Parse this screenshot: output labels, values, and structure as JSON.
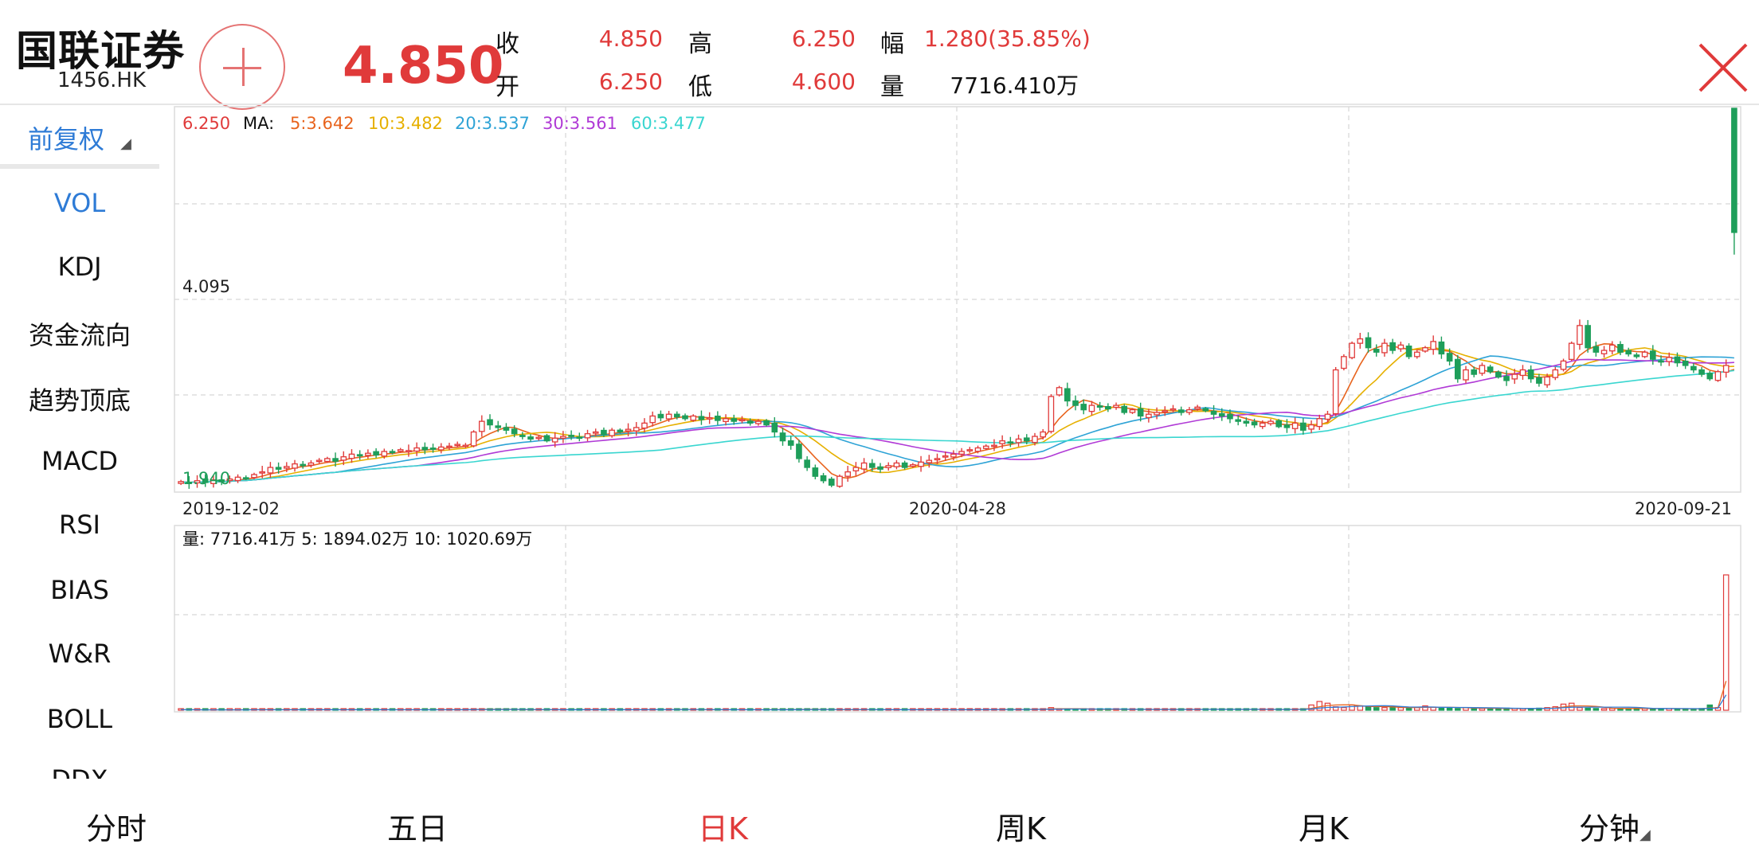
{
  "header": {
    "name": "国联证券",
    "code": "1456.HK",
    "last_price": "4.850",
    "quote": {
      "close_label": "收",
      "close": "4.850",
      "high_label": "高",
      "high": "6.250",
      "change_label": "幅",
      "change": "1.280(35.85%)",
      "open_label": "开",
      "open": "6.250",
      "low_label": "低",
      "low": "4.600",
      "volume_label": "量",
      "volume": "7716.410万"
    },
    "icons": {
      "add": "plus-circle-icon",
      "close": "close-x-icon"
    }
  },
  "sidebar": {
    "adjust_mode": "前复权",
    "items": [
      {
        "label": "VOL",
        "active": true
      },
      {
        "label": "KDJ"
      },
      {
        "label": "资金流向"
      },
      {
        "label": "趋势顶底"
      },
      {
        "label": "MACD"
      },
      {
        "label": "RSI"
      },
      {
        "label": "BIAS"
      },
      {
        "label": "W&R"
      },
      {
        "label": "BOLL"
      },
      {
        "label": "DDX"
      }
    ]
  },
  "price_panel": {
    "high_label": "6.250",
    "ma_prefix": "MA:",
    "ma": [
      {
        "text": "5:3.642",
        "color": "#e8641e"
      },
      {
        "text": "10:3.482",
        "color": "#e6b000"
      },
      {
        "text": "20:3.537",
        "color": "#2ea3d6"
      },
      {
        "text": "30:3.561",
        "color": "#b03ad6"
      },
      {
        "text": "60:3.477",
        "color": "#3ad6d0"
      }
    ],
    "mid_label": "4.095",
    "low_label": "1.940"
  },
  "x_axis": [
    "2019-12-02",
    "2020-04-28",
    "2020-09-21"
  ],
  "volume_panel": {
    "text": "量: 7716.41万  5: 1894.02万  10: 1020.69万"
  },
  "chart_data": {
    "type": "candlestick",
    "y_range": [
      1.94,
      6.25
    ],
    "start_date": "2019-12-02",
    "end_date": "2020-09-21",
    "last_candle": {
      "open": 6.25,
      "high": 6.25,
      "low": 4.6,
      "close": 4.85,
      "volume_wan": 7716.41
    },
    "closes": [
      2.04,
      2.02,
      2.05,
      2.03,
      2.06,
      2.04,
      2.07,
      2.09,
      2.08,
      2.12,
      2.15,
      2.2,
      2.18,
      2.21,
      2.24,
      2.22,
      2.25,
      2.28,
      2.3,
      2.27,
      2.32,
      2.35,
      2.33,
      2.36,
      2.34,
      2.38,
      2.37,
      2.4,
      2.39,
      2.42,
      2.4,
      2.41,
      2.43,
      2.44,
      2.46,
      2.45,
      2.6,
      2.72,
      2.68,
      2.65,
      2.62,
      2.58,
      2.55,
      2.52,
      2.54,
      2.5,
      2.53,
      2.55,
      2.56,
      2.54,
      2.58,
      2.6,
      2.57,
      2.62,
      2.6,
      2.63,
      2.65,
      2.7,
      2.78,
      2.76,
      2.8,
      2.77,
      2.75,
      2.78,
      2.74,
      2.76,
      2.73,
      2.75,
      2.72,
      2.74,
      2.7,
      2.72,
      2.68,
      2.6,
      2.5,
      2.45,
      2.3,
      2.2,
      2.1,
      2.05,
      2.0,
      2.1,
      2.15,
      2.2,
      2.25,
      2.2,
      2.18,
      2.22,
      2.25,
      2.2,
      2.23,
      2.26,
      2.28,
      2.3,
      2.33,
      2.35,
      2.38,
      2.4,
      2.42,
      2.44,
      2.45,
      2.5,
      2.48,
      2.52,
      2.5,
      2.55,
      2.6,
      3.0,
      3.1,
      2.95,
      2.9,
      2.85,
      2.9,
      2.88,
      2.86,
      2.9,
      2.82,
      2.85,
      2.78,
      2.8,
      2.82,
      2.84,
      2.86,
      2.82,
      2.85,
      2.88,
      2.84,
      2.8,
      2.78,
      2.75,
      2.72,
      2.7,
      2.68,
      2.7,
      2.72,
      2.66,
      2.65,
      2.7,
      2.62,
      2.68,
      2.75,
      2.8,
      3.3,
      3.45,
      3.6,
      3.65,
      3.55,
      3.5,
      3.6,
      3.52,
      3.58,
      3.45,
      3.5,
      3.55,
      3.62,
      3.48,
      3.4,
      3.2,
      3.3,
      3.25,
      3.35,
      3.28,
      3.22,
      3.18,
      3.25,
      3.3,
      3.2,
      3.15,
      3.22,
      3.3,
      3.4,
      3.6,
      3.8,
      3.55,
      3.5,
      3.52,
      3.58,
      3.5,
      3.48,
      3.45,
      3.5,
      3.42,
      3.4,
      3.44,
      3.38,
      3.35,
      3.3,
      3.25,
      3.2,
      3.28,
      3.35,
      4.85
    ],
    "volumes_wan": [
      30,
      20,
      25,
      18,
      22,
      20,
      28,
      30,
      25,
      40,
      35,
      30,
      25,
      28,
      32,
      30,
      35,
      30,
      28,
      26,
      30,
      35,
      30,
      28,
      25,
      30,
      28,
      26,
      30,
      25,
      28,
      30,
      35,
      32,
      30,
      40,
      80,
      70,
      50,
      40,
      35,
      30,
      28,
      25,
      30,
      28,
      26,
      30,
      35,
      30,
      40,
      35,
      30,
      28,
      32,
      30,
      35,
      40,
      60,
      50,
      45,
      40,
      35,
      30,
      28,
      30,
      25,
      28,
      26,
      30,
      25,
      28,
      30,
      40,
      50,
      45,
      60,
      55,
      40,
      35,
      30,
      28,
      35,
      40,
      45,
      35,
      30,
      28,
      30,
      26,
      30,
      35,
      30,
      28,
      30,
      35,
      40,
      45,
      50,
      40,
      35,
      60,
      40,
      50,
      45,
      60,
      80,
      150,
      80,
      70,
      60,
      50,
      55,
      50,
      45,
      50,
      40,
      45,
      40,
      45,
      50,
      55,
      50,
      45,
      50,
      55,
      60,
      50,
      45,
      40,
      50,
      45,
      40,
      45,
      50,
      45,
      55,
      60,
      90,
      300,
      500,
      400,
      200,
      150,
      300,
      250,
      200,
      150,
      150,
      200,
      150,
      120,
      150,
      250,
      180,
      150,
      120,
      100,
      150,
      120,
      100,
      90,
      80,
      120,
      100,
      90,
      100,
      120,
      150,
      200,
      350,
      400,
      150,
      120,
      100,
      90,
      110,
      100,
      90,
      120,
      100,
      90,
      80,
      100,
      90,
      80,
      70,
      100,
      300,
      150,
      7716
    ]
  },
  "tabs": [
    {
      "label": "分时"
    },
    {
      "label": "五日"
    },
    {
      "label": "日K",
      "active": true
    },
    {
      "label": "周K"
    },
    {
      "label": "月K"
    },
    {
      "label": "分钟"
    }
  ],
  "colors": {
    "up": "#e03a3a",
    "down": "#1e9e5a",
    "accent": "#2e7bd6"
  }
}
